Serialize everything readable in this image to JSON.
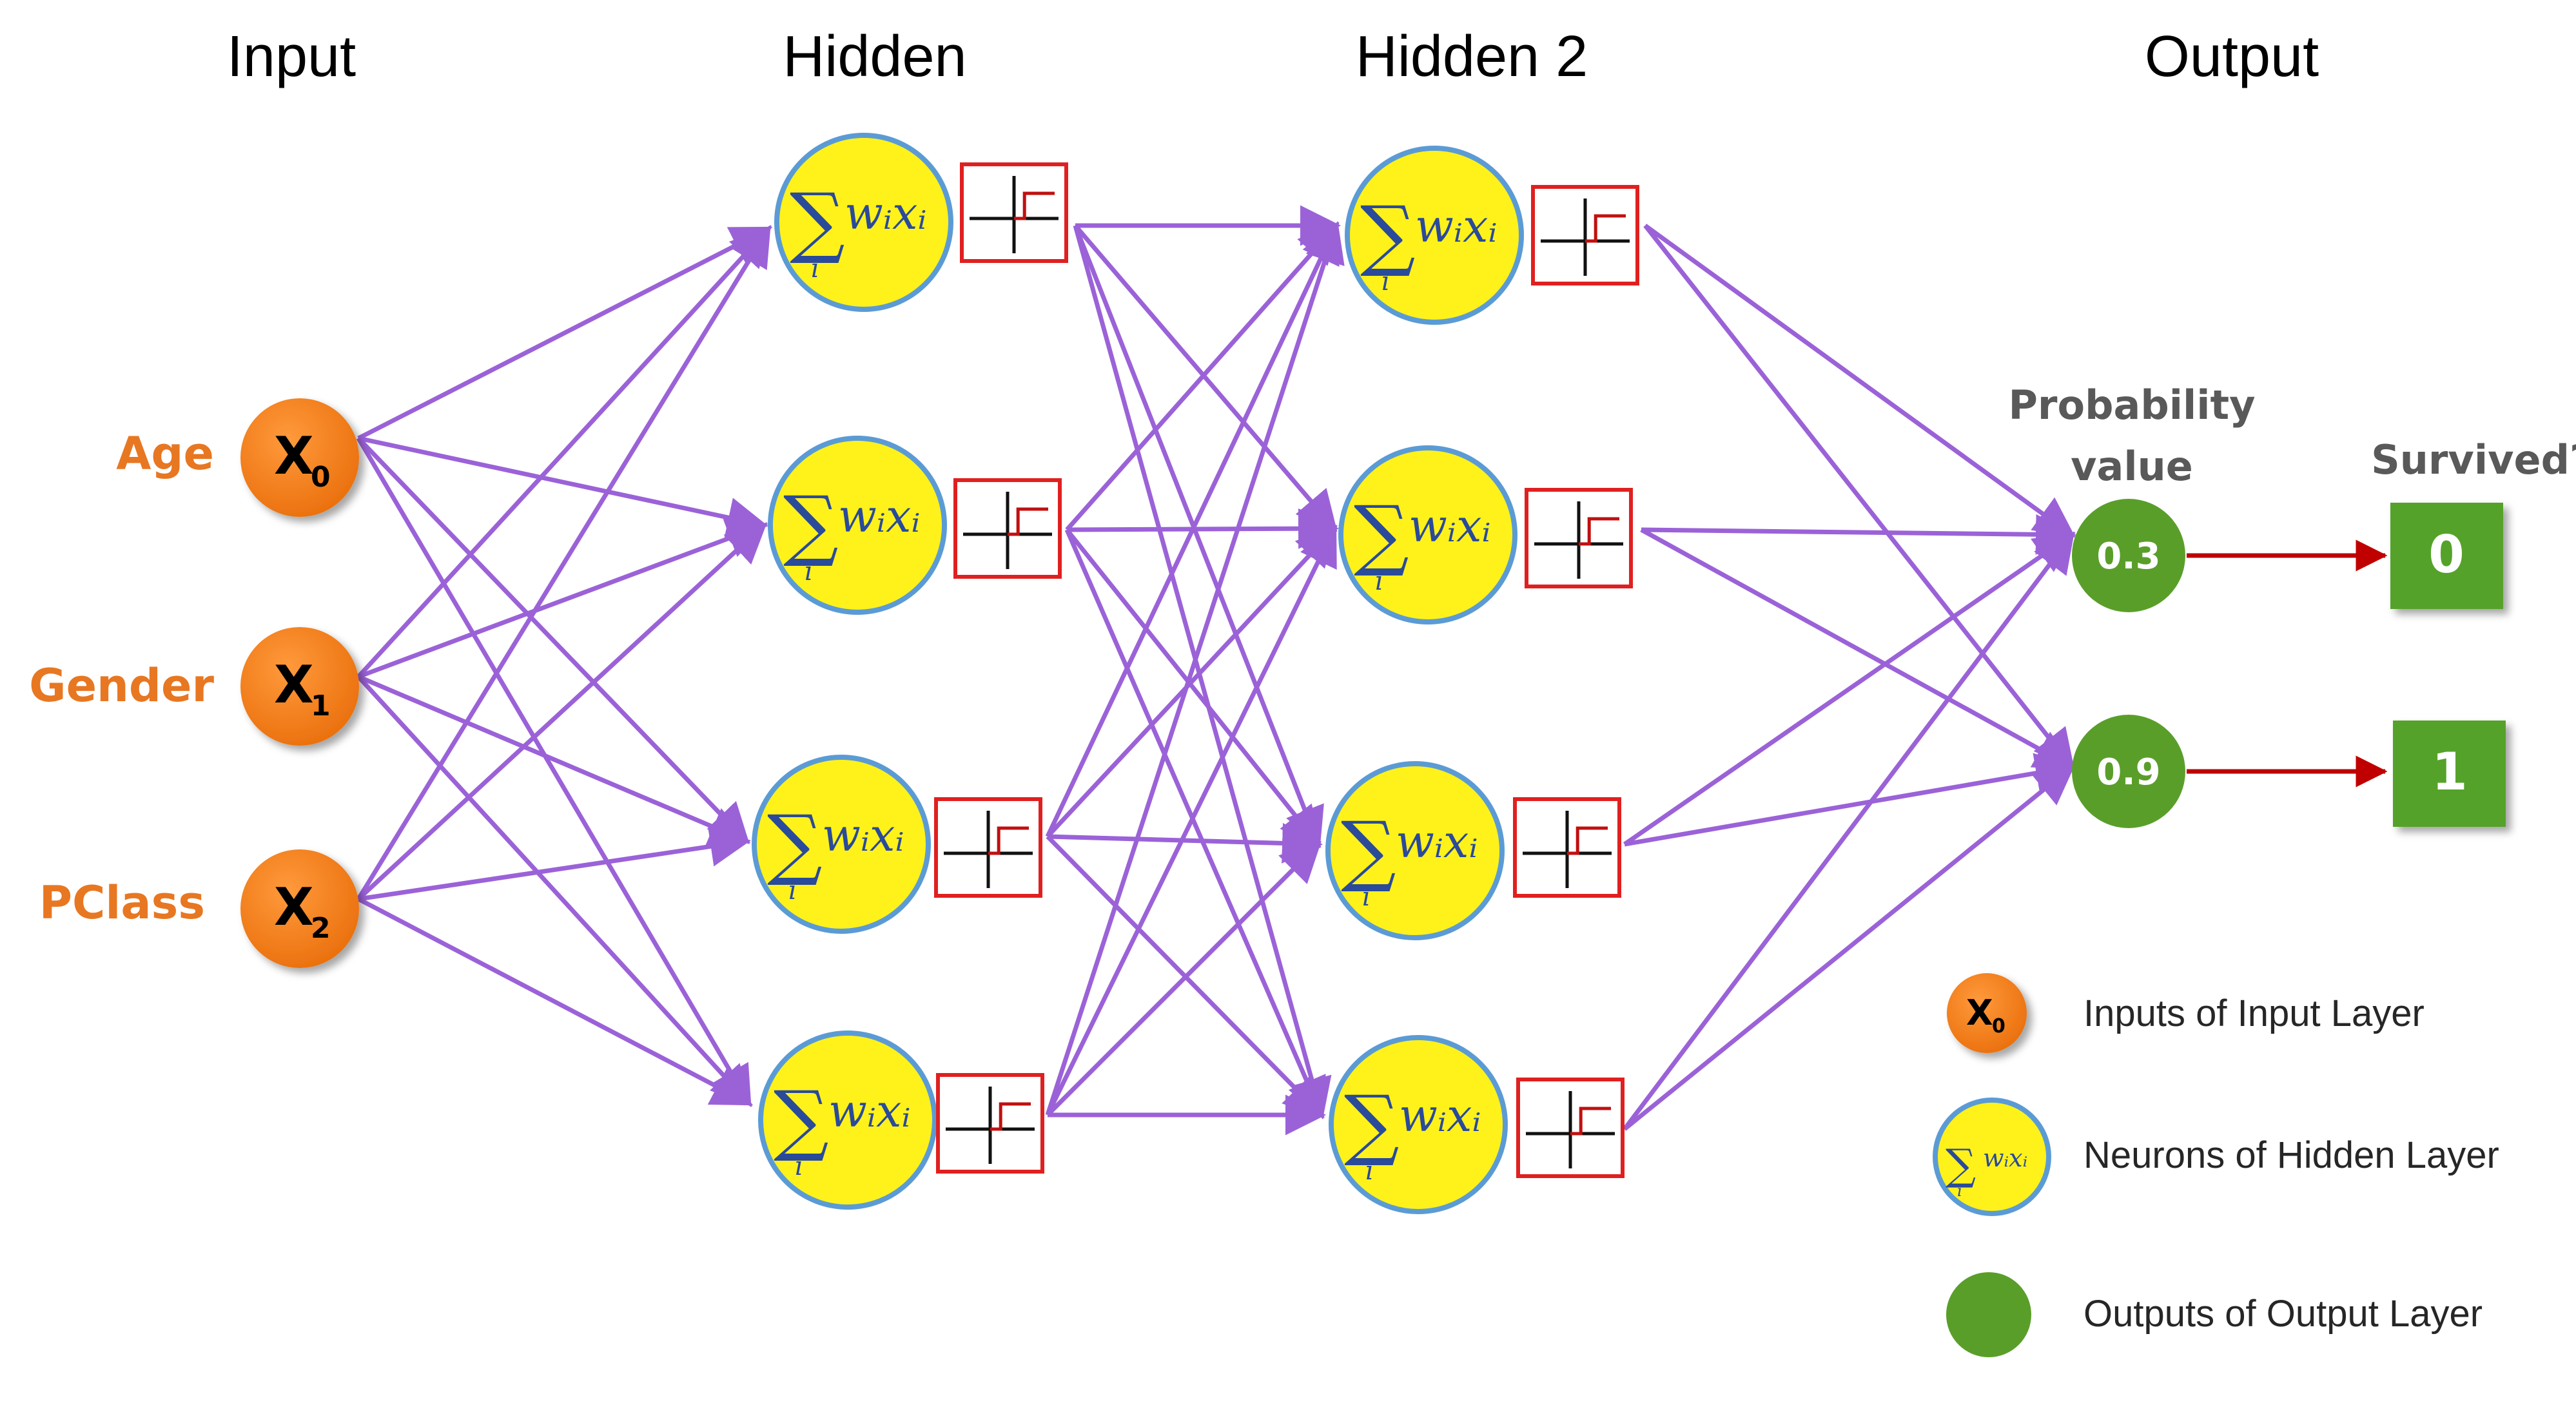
{
  "layers": {
    "input": "Input",
    "hidden": "Hidden",
    "hidden2": "Hidden 2",
    "output": "Output"
  },
  "inputs": [
    {
      "label": "Age",
      "symbol": "X",
      "subscript": "0"
    },
    {
      "label": "Gender",
      "symbol": "X",
      "subscript": "1"
    },
    {
      "label": "PClass",
      "symbol": "X",
      "subscript": "2"
    }
  ],
  "neuron_formula": {
    "sum": "∑",
    "index": "i",
    "term": "wᵢxᵢ"
  },
  "probability_header": {
    "line1": "Probability",
    "line2": "value"
  },
  "survived_header": "Survived?",
  "outputs": [
    {
      "probability": "0.3",
      "survived": "0"
    },
    {
      "probability": "0.9",
      "survived": "1"
    }
  ],
  "legend": [
    {
      "icon": "input-node-icon",
      "text": "Inputs of Input Layer"
    },
    {
      "icon": "neuron-icon",
      "text": "Neurons of Hidden Layer"
    },
    {
      "icon": "output-node-icon",
      "text": "Outputs of Output Layer"
    }
  ],
  "colors": {
    "input_node": "#f07f1a",
    "input_label": "#e87722",
    "neuron_fill": "#fff21a",
    "neuron_border": "#5b9bd5",
    "edge": "#9b62d8",
    "activation_border": "#e02020",
    "output_node": "#5a9e2a",
    "survived_box": "#55a22b",
    "output_arrow": "#c00000"
  }
}
